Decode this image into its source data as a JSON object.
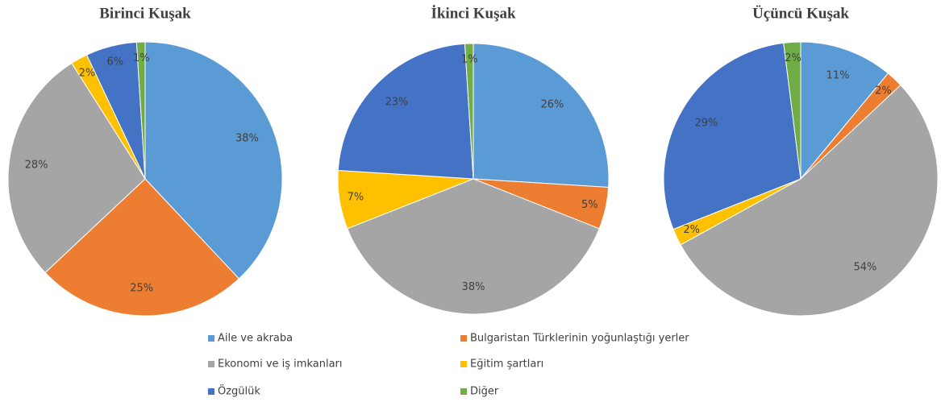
{
  "legend": {
    "labels": [
      "Aile ve akraba",
      "Bulgaristan Türklerinin yoğunlaştığı yerler",
      "Ekonomi ve iş imkanları",
      "Eğitim şartları",
      "Özgülük",
      "Diğer"
    ],
    "colors": [
      "#5b9bd5",
      "#ed7d31",
      "#a5a5a5",
      "#ffc000",
      "#4472c4",
      "#70ad47"
    ]
  },
  "chart_data": [
    {
      "type": "pie",
      "title": "Birinci Kuşak",
      "values": [
        38,
        25,
        28,
        2,
        6,
        1
      ],
      "value_labels": [
        "38%",
        "25%",
        "28%",
        "2%",
        "6%",
        "1%"
      ]
    },
    {
      "type": "pie",
      "title": "İkinci Kuşak",
      "values": [
        26,
        5,
        38,
        7,
        23,
        1
      ],
      "value_labels": [
        "26%",
        "5%",
        "38%",
        "7%",
        "23%",
        "1%"
      ]
    },
    {
      "type": "pie",
      "title": "Üçüncü Kuşak",
      "values": [
        11,
        2,
        54,
        2,
        29,
        2
      ],
      "value_labels": [
        "11%",
        "2%",
        "54%",
        "2%",
        "29%",
        "2%"
      ]
    }
  ]
}
